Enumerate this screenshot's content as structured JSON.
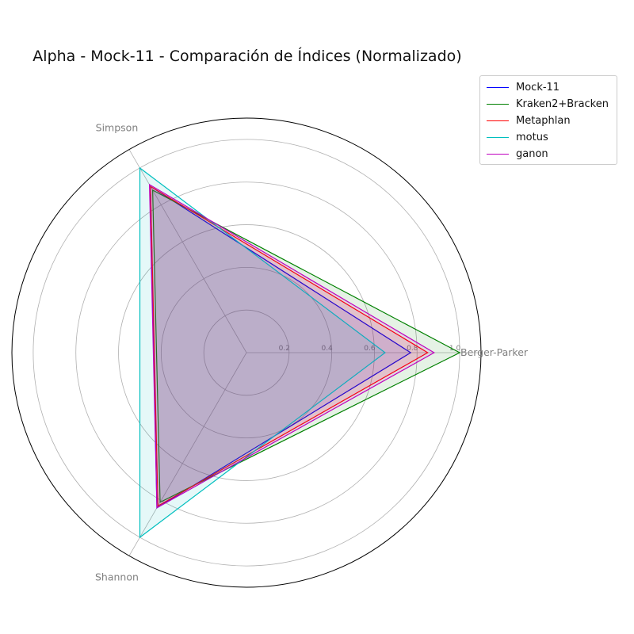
{
  "chart_data": {
    "type": "radar",
    "title": "Alpha - Mock-11 - Comparación de Índices (Normalizado)",
    "axes": [
      "Berger-Parker",
      "Simpson",
      "Shannon"
    ],
    "radial_ticks": [
      0.2,
      0.4,
      0.6,
      0.8,
      1.0
    ],
    "radial_tick_labels": [
      "0.2",
      "0.4",
      "0.6",
      "0.8",
      "1.0"
    ],
    "rlim": [
      0,
      1.1
    ],
    "legend_position": "top-right",
    "series": [
      {
        "name": "Mock-11",
        "color": "#0000ff",
        "values": [
          0.77,
          0.9,
          0.84
        ]
      },
      {
        "name": "Kraken2+Bracken",
        "color": "#008000",
        "values": [
          1.0,
          0.88,
          0.81
        ]
      },
      {
        "name": "Metaphlan",
        "color": "#ff0000",
        "values": [
          0.85,
          0.9,
          0.83
        ]
      },
      {
        "name": "motus",
        "color": "#00bfbf",
        "values": [
          0.65,
          1.0,
          1.0
        ]
      },
      {
        "name": "ganon",
        "color": "#bf00bf",
        "values": [
          0.88,
          0.91,
          0.84
        ]
      }
    ]
  }
}
